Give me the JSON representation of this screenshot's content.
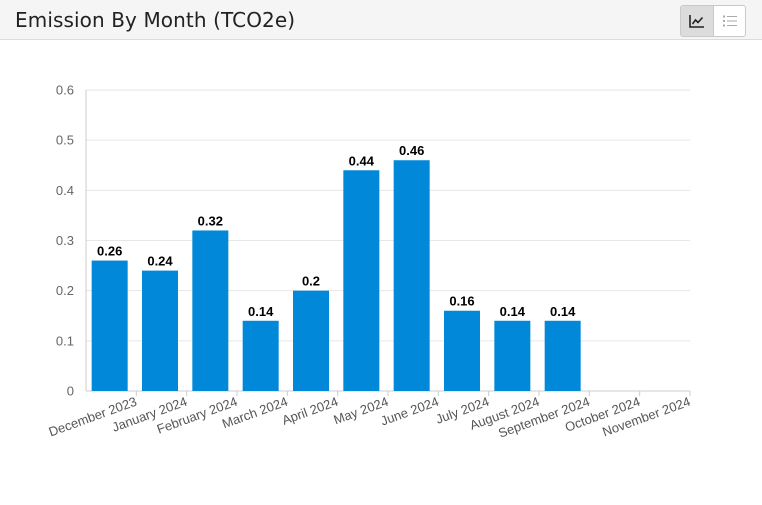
{
  "header": {
    "title": "Emission By Month (TCO2e)"
  },
  "view_toggle": {
    "chart_icon": "line-chart-icon",
    "list_icon": "list-icon",
    "active": "chart"
  },
  "colors": {
    "bar": "#0288d9",
    "grid": "#e6e6e6",
    "axis": "#cccccc"
  },
  "chart_data": {
    "type": "bar",
    "title": "",
    "xlabel": "",
    "ylabel": "",
    "ylim": [
      0,
      0.6
    ],
    "yticks": [
      "0",
      "0.1",
      "0.2",
      "0.3",
      "0.4",
      "0.5",
      "0.6"
    ],
    "grid": true,
    "categories": [
      "December 2023",
      "January 2024",
      "February 2024",
      "March 2024",
      "April 2024",
      "May 2024",
      "June 2024",
      "July 2024",
      "August 2024",
      "September 2024",
      "October 2024",
      "November 2024"
    ],
    "values": [
      0.26,
      0.24,
      0.32,
      0.14,
      0.2,
      0.44,
      0.46,
      0.16,
      0.14,
      0.14,
      null,
      null
    ],
    "data_labels": [
      "0.26",
      "0.24",
      "0.32",
      "0.14",
      "0.2",
      "0.44",
      "0.46",
      "0.16",
      "0.14",
      "0.14",
      "",
      ""
    ]
  }
}
